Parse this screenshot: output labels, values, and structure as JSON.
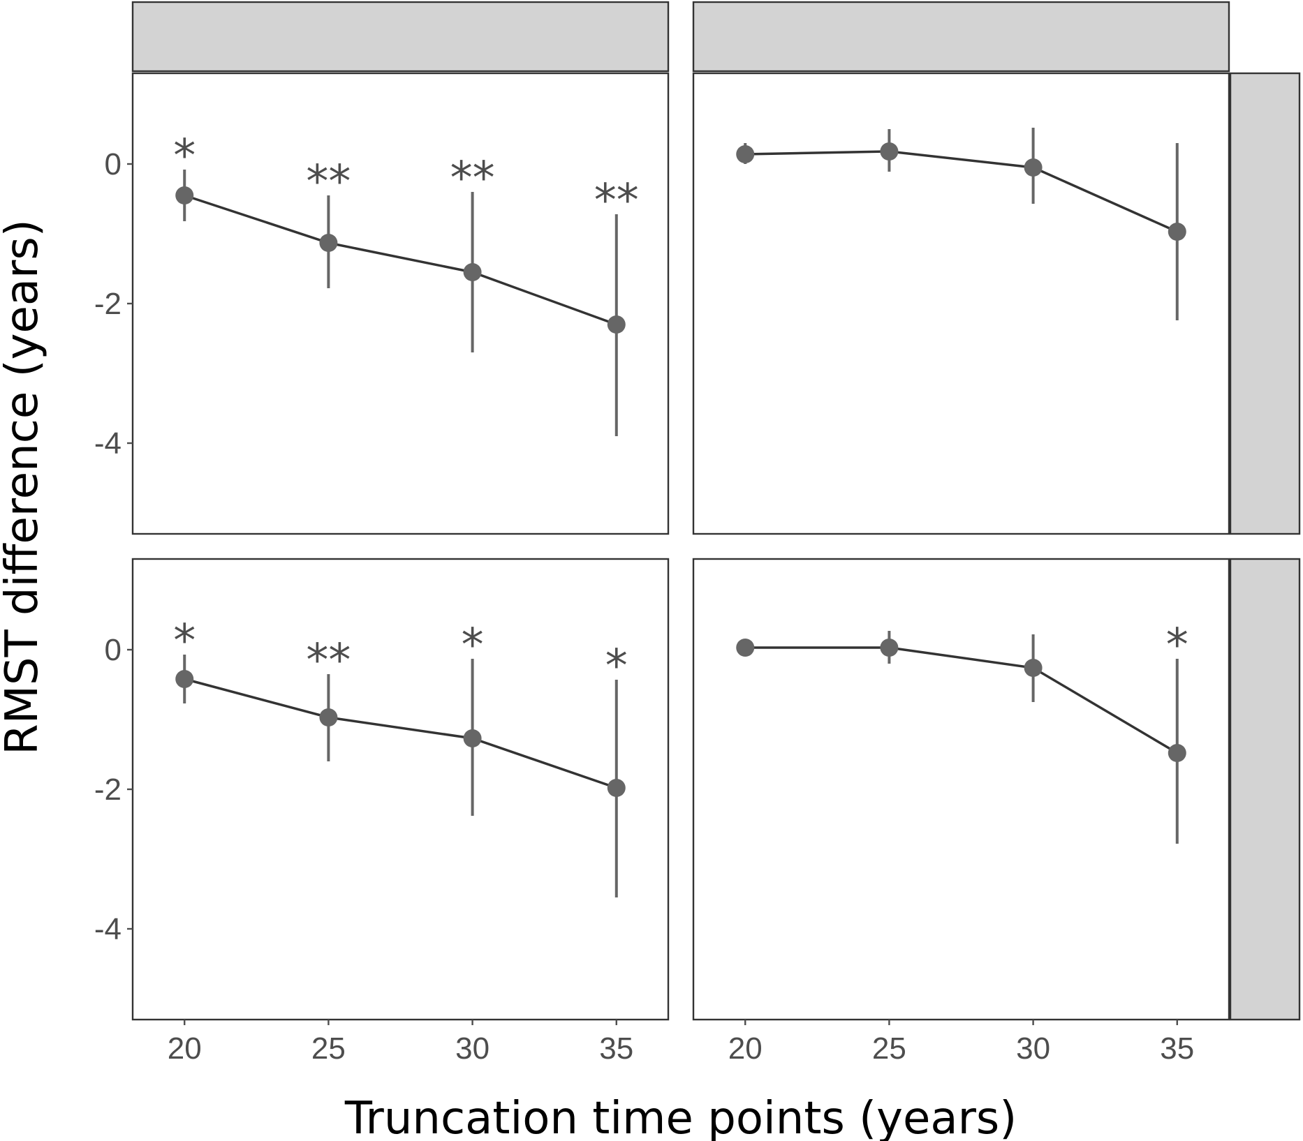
{
  "chart_data": {
    "type": "line",
    "xlabel": "Truncation time points (years)",
    "ylabel": "RMST difference (years)",
    "x_ticks": [
      20,
      25,
      30,
      35
    ],
    "y_ticks": [
      0,
      -2,
      -4
    ],
    "y_tick_labels": [
      "0",
      "-2",
      "-4"
    ],
    "x_tick_labels": [
      "20",
      "25",
      "30",
      "35"
    ],
    "ylim": [
      -5.3,
      1.3
    ],
    "xlim": [
      18.2,
      36.8
    ],
    "grid": false,
    "colors": {
      "point": "#666666",
      "line": "#333333",
      "strip": "#d3d3d3"
    },
    "panels": [
      {
        "row": 0,
        "col": 0,
        "x": [
          20,
          25,
          30,
          35
        ],
        "y": [
          -0.45,
          -1.13,
          -1.55,
          -2.3
        ],
        "ymin": [
          -0.82,
          -1.78,
          -2.7,
          -3.9
        ],
        "ymax": [
          -0.08,
          -0.45,
          -0.4,
          -0.72
        ],
        "significance": [
          "*",
          "**",
          "**",
          "**"
        ]
      },
      {
        "row": 0,
        "col": 1,
        "x": [
          20,
          25,
          30,
          35
        ],
        "y": [
          0.14,
          0.18,
          -0.05,
          -0.97
        ],
        "ymin": [
          0.0,
          -0.11,
          -0.57,
          -2.24
        ],
        "ymax": [
          0.3,
          0.5,
          0.52,
          0.3
        ],
        "significance": [
          "",
          "",
          "",
          ""
        ]
      },
      {
        "row": 1,
        "col": 0,
        "x": [
          20,
          25,
          30,
          35
        ],
        "y": [
          -0.42,
          -0.97,
          -1.27,
          -1.98
        ],
        "ymin": [
          -0.77,
          -1.6,
          -2.38,
          -3.55
        ],
        "ymax": [
          -0.07,
          -0.35,
          -0.13,
          -0.43
        ],
        "significance": [
          "*",
          "**",
          "*",
          "*"
        ]
      },
      {
        "row": 1,
        "col": 1,
        "x": [
          20,
          25,
          30,
          35
        ],
        "y": [
          0.03,
          0.03,
          -0.26,
          -1.48
        ],
        "ymin": [
          0.0,
          -0.2,
          -0.75,
          -2.78
        ],
        "ymax": [
          0.06,
          0.27,
          0.22,
          -0.13
        ],
        "significance": [
          "",
          "",
          "",
          "*"
        ]
      }
    ]
  }
}
